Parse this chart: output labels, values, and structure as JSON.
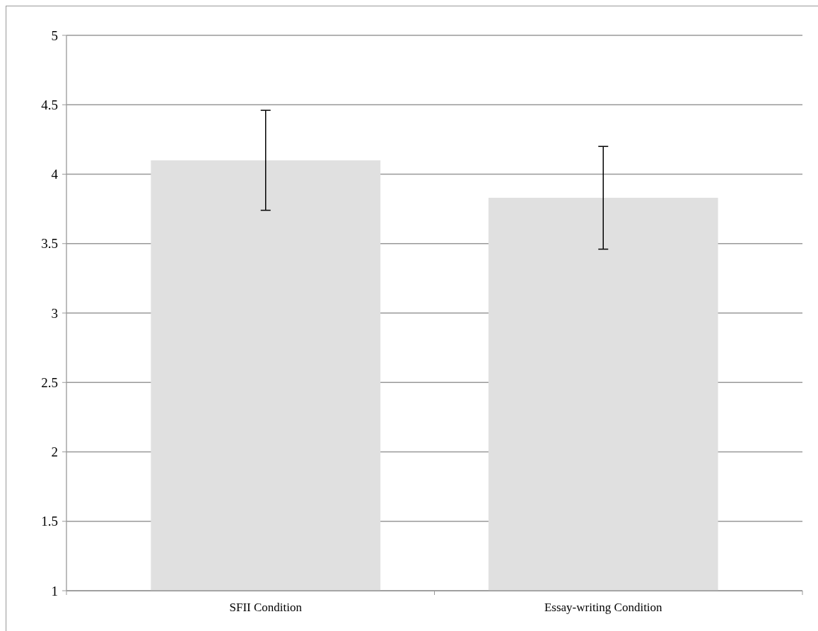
{
  "chart_data": {
    "type": "bar",
    "categories": [
      "SFII Condition",
      "Essay-writing Condition"
    ],
    "series": [
      {
        "color": "#e0e0e0",
        "values": [
          4.1,
          3.83
        ],
        "errors": [
          0.36,
          0.37
        ]
      }
    ],
    "ylim": [
      1,
      5
    ],
    "yticks": [
      1,
      1.5,
      2,
      2.5,
      3,
      3.5,
      4,
      4.5,
      5
    ],
    "grid": "y"
  }
}
